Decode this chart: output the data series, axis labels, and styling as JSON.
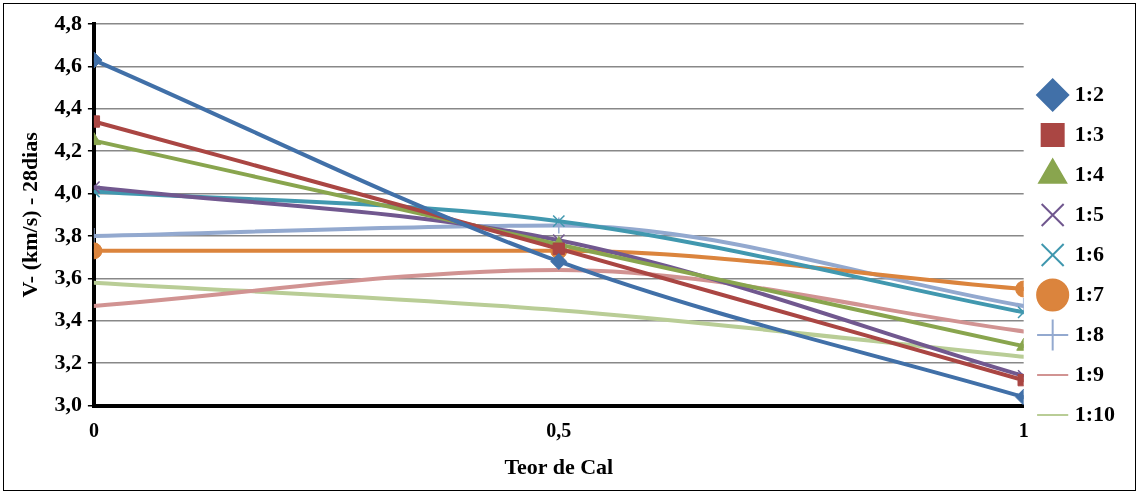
{
  "chart_data": {
    "type": "line",
    "xlabel": "Teor de Cal",
    "ylabel": "V- (km/s) - 28dias",
    "x": [
      0,
      0.5,
      1
    ],
    "xlim": [
      0,
      1
    ],
    "xticks": [
      0,
      {
        "value": 0.5,
        "label": "0,5"
      },
      1
    ],
    "ylim": [
      3.0,
      4.8
    ],
    "yticks": [
      {
        "value": 3.0,
        "label": "3,0"
      },
      {
        "value": 3.2,
        "label": "3,2"
      },
      {
        "value": 3.4,
        "label": "3,4"
      },
      {
        "value": 3.6,
        "label": "3,6"
      },
      {
        "value": 3.8,
        "label": "3,8"
      },
      {
        "value": 4.0,
        "label": "4,0"
      },
      {
        "value": 4.2,
        "label": "4,2"
      },
      {
        "value": 4.4,
        "label": "4,4"
      },
      {
        "value": 4.6,
        "label": "4,6"
      },
      {
        "value": 4.8,
        "label": "4,8"
      }
    ],
    "grid": "y",
    "legend": "right",
    "series": [
      {
        "name": "1:2",
        "color": "#4170a8",
        "marker": "diamond",
        "values": [
          4.63,
          3.68,
          3.04
        ]
      },
      {
        "name": "1:3",
        "color": "#aa4643",
        "marker": "square",
        "values": [
          4.34,
          3.74,
          3.12
        ]
      },
      {
        "name": "1:4",
        "color": "#89a54e",
        "marker": "triangle",
        "values": [
          4.25,
          3.76,
          3.28
        ]
      },
      {
        "name": "1:5",
        "color": "#71588f",
        "marker": "cross",
        "values": [
          4.03,
          3.78,
          3.14
        ]
      },
      {
        "name": "1:6",
        "color": "#4198af",
        "marker": "cross",
        "values": [
          4.01,
          3.87,
          3.44
        ]
      },
      {
        "name": "1:7",
        "color": "#db843d",
        "marker": "circle",
        "values": [
          3.73,
          3.73,
          3.55
        ]
      },
      {
        "name": "1:8",
        "color": "#93a9cf",
        "marker": "plus",
        "values": [
          3.8,
          3.85,
          3.47
        ]
      },
      {
        "name": "1:9",
        "color": "#d19392",
        "marker": "none",
        "values": [
          3.47,
          3.64,
          3.35
        ]
      },
      {
        "name": "1:10",
        "color": "#b9cd96",
        "marker": "none",
        "values": [
          3.58,
          3.45,
          3.23
        ]
      }
    ]
  }
}
